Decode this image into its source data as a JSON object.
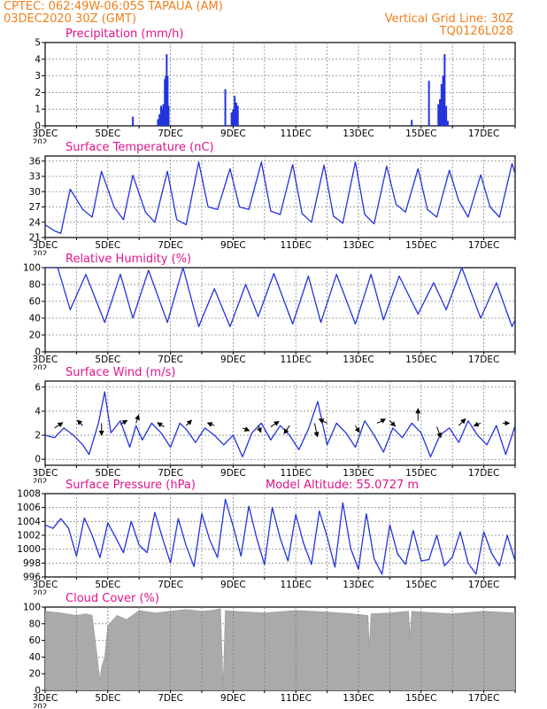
{
  "header": {
    "left_line1": "CPTEC:   062:49W-06:05S   TAPAUA (AM)",
    "left_line2": "03DEC2020 30Z (GMT)",
    "right_line1": "Vertical Grid Line: 30Z",
    "right_line2": "TQ0126L028"
  },
  "x_axis": {
    "day_start": 3,
    "day_end": 18,
    "tick_days": [
      3,
      5,
      7,
      9,
      11,
      13,
      15,
      17
    ],
    "tick_labels": [
      "3DEC",
      "5DEC",
      "7DEC",
      "9DEC",
      "11DEC",
      "13DEC",
      "15DEC",
      "17DEC"
    ],
    "year_fragment": "202"
  },
  "colors": {
    "title": "#e0148c",
    "header": "#f07f1a",
    "series": "#2233dd",
    "cloud": "#aaaaaa"
  },
  "chart_data": [
    {
      "type": "bar",
      "title": "Precipitation (mm/h)",
      "ylim": [
        0,
        5
      ],
      "yticks": [
        0,
        1,
        2,
        3,
        4,
        5
      ],
      "x_units": "day of December 2020",
      "bars": [
        [
          5.8,
          0.55
        ],
        [
          6.6,
          0.4
        ],
        [
          6.65,
          0.7
        ],
        [
          6.7,
          1.2
        ],
        [
          6.73,
          1.0
        ],
        [
          6.77,
          1.3
        ],
        [
          6.82,
          2.8
        ],
        [
          6.85,
          3.0
        ],
        [
          6.88,
          4.3
        ],
        [
          6.91,
          3.0
        ],
        [
          6.94,
          1.2
        ],
        [
          8.75,
          2.2
        ],
        [
          8.95,
          0.8
        ],
        [
          9.0,
          1.0
        ],
        [
          9.05,
          1.8
        ],
        [
          9.1,
          1.4
        ],
        [
          9.15,
          1.2
        ],
        [
          14.7,
          0.35
        ],
        [
          15.25,
          2.7
        ],
        [
          15.55,
          1.3
        ],
        [
          15.6,
          1.6
        ],
        [
          15.65,
          2.5
        ],
        [
          15.7,
          3.0
        ],
        [
          15.75,
          4.3
        ],
        [
          15.8,
          1.2
        ],
        [
          15.85,
          0.3
        ]
      ]
    },
    {
      "type": "line",
      "title": "Surface Temperature (nC)",
      "ylim": [
        21,
        37
      ],
      "yticks": [
        21,
        24,
        27,
        30,
        33,
        36
      ],
      "series": [
        {
          "x": [
            3.0,
            3.3,
            3.5,
            3.8,
            4.2,
            4.5,
            4.8,
            5.2,
            5.5,
            5.8,
            6.2,
            6.5,
            6.9,
            7.2,
            7.5,
            7.9,
            8.2,
            8.5,
            8.9,
            9.2,
            9.5,
            9.9,
            10.2,
            10.5,
            10.9,
            11.2,
            11.5,
            11.9,
            12.2,
            12.5,
            12.9,
            13.2,
            13.5,
            13.9,
            14.2,
            14.5,
            14.9,
            15.2,
            15.5,
            15.9,
            16.2,
            16.5,
            16.9,
            17.2,
            17.5,
            17.9,
            18.0
          ],
          "y": [
            23.5,
            22.3,
            21.8,
            30.5,
            26.5,
            25.0,
            34.0,
            27.0,
            24.5,
            33.2,
            26.0,
            24.0,
            34.0,
            24.5,
            23.5,
            35.8,
            27.0,
            26.5,
            34.5,
            27.0,
            26.5,
            35.8,
            26.2,
            25.5,
            35.3,
            25.7,
            24.0,
            35.2,
            25.2,
            23.8,
            35.8,
            25.5,
            23.7,
            35.0,
            27.5,
            26.0,
            34.5,
            26.5,
            25.0,
            34.2,
            28.2,
            25.0,
            33.3,
            27.0,
            25.0,
            35.5,
            33.5
          ]
        }
      ]
    },
    {
      "type": "line",
      "title": "Relative Humidity (%)",
      "ylim": [
        0,
        100
      ],
      "yticks": [
        0,
        20,
        40,
        60,
        80,
        100
      ],
      "series": [
        {
          "x": [
            3.0,
            3.4,
            3.8,
            4.3,
            4.9,
            5.4,
            5.8,
            6.3,
            6.9,
            7.4,
            7.9,
            8.4,
            8.9,
            9.4,
            9.8,
            10.3,
            10.9,
            11.4,
            11.8,
            12.3,
            12.9,
            13.4,
            13.8,
            14.3,
            14.9,
            15.4,
            15.8,
            16.3,
            16.9,
            17.4,
            17.9,
            18.0
          ],
          "y": [
            100,
            100,
            50,
            92,
            35,
            92,
            40,
            97,
            35,
            100,
            30,
            75,
            30,
            80,
            42,
            93,
            33,
            90,
            35,
            92,
            33,
            92,
            38,
            90,
            45,
            82,
            50,
            100,
            40,
            82,
            30,
            38
          ]
        }
      ]
    },
    {
      "type": "line",
      "title": "Surface Wind (m/s)",
      "ylim": [
        -0.5,
        6.5
      ],
      "yticks": [
        0,
        2,
        4,
        6
      ],
      "series": [
        {
          "x": [
            3.0,
            3.3,
            3.6,
            3.9,
            4.2,
            4.4,
            4.7,
            4.9,
            5.1,
            5.4,
            5.7,
            5.9,
            6.1,
            6.4,
            6.7,
            7.0,
            7.3,
            7.5,
            7.8,
            8.1,
            8.4,
            8.7,
            9.0,
            9.3,
            9.6,
            9.9,
            10.2,
            10.5,
            10.8,
            11.1,
            11.4,
            11.7,
            12.0,
            12.3,
            12.6,
            12.9,
            13.2,
            13.5,
            13.8,
            14.1,
            14.4,
            14.7,
            15.0,
            15.3,
            15.6,
            15.9,
            16.2,
            16.5,
            16.8,
            17.1,
            17.4,
            17.7,
            18.0
          ],
          "y": [
            2.0,
            1.8,
            2.6,
            2.0,
            1.2,
            0.4,
            3.0,
            5.6,
            2.2,
            3.2,
            1.0,
            2.8,
            1.6,
            3.0,
            2.2,
            1.0,
            3.0,
            2.5,
            1.4,
            2.6,
            2.0,
            1.2,
            2.0,
            0.2,
            2.2,
            3.0,
            1.6,
            2.8,
            2.0,
            0.8,
            2.5,
            4.8,
            1.2,
            3.0,
            2.2,
            1.0,
            3.2,
            2.0,
            0.6,
            2.6,
            1.8,
            3.0,
            2.2,
            0.2,
            2.0,
            2.6,
            1.4,
            3.2,
            2.0,
            1.2,
            2.8,
            0.4,
            2.8
          ]
        }
      ],
      "vectors": [
        [
          3.3,
          2.6,
          0.6,
          0.4
        ],
        [
          4.2,
          2.8,
          -0.4,
          0.4
        ],
        [
          4.8,
          3.0,
          0.0,
          -0.9
        ],
        [
          5.4,
          2.9,
          0.5,
          0.3
        ],
        [
          5.9,
          3.0,
          0.2,
          0.6
        ],
        [
          6.8,
          2.7,
          -0.5,
          0.3
        ],
        [
          7.5,
          2.8,
          0.4,
          0.4
        ],
        [
          8.4,
          2.8,
          -0.5,
          0.2
        ],
        [
          9.3,
          2.6,
          0.5,
          -0.2
        ],
        [
          9.8,
          2.8,
          0.2,
          -0.5
        ],
        [
          10.2,
          2.7,
          0.6,
          0.4
        ],
        [
          10.8,
          2.8,
          -0.4,
          -0.6
        ],
        [
          11.6,
          3.0,
          0.2,
          -1.0
        ],
        [
          12.0,
          3.0,
          -0.6,
          0.3
        ],
        [
          12.9,
          2.8,
          0.3,
          -0.5
        ],
        [
          13.6,
          3.0,
          0.6,
          0.3
        ],
        [
          14.0,
          3.2,
          0.4,
          -0.4
        ],
        [
          14.9,
          3.2,
          0.0,
          0.9
        ],
        [
          15.5,
          2.7,
          0.3,
          -0.8
        ],
        [
          16.2,
          2.8,
          0.5,
          0.5
        ],
        [
          16.9,
          3.0,
          -0.5,
          -0.2
        ],
        [
          17.6,
          3.0,
          0.5,
          0.0
        ]
      ]
    },
    {
      "type": "line",
      "title": "Surface Pressure (hPa)",
      "subtitle": "Model Altitude: 55.0727 m",
      "ylim": [
        996,
        1008
      ],
      "yticks": [
        996,
        998,
        1000,
        1002,
        1004,
        1006,
        1008
      ],
      "series": [
        {
          "x": [
            3.0,
            3.25,
            3.5,
            3.75,
            4.0,
            4.25,
            4.5,
            4.75,
            5.0,
            5.25,
            5.5,
            5.75,
            6.0,
            6.25,
            6.5,
            6.75,
            7.0,
            7.25,
            7.5,
            7.75,
            8.0,
            8.25,
            8.5,
            8.75,
            9.0,
            9.25,
            9.5,
            9.75,
            10.0,
            10.25,
            10.5,
            10.75,
            11.0,
            11.25,
            11.5,
            11.75,
            12.0,
            12.25,
            12.5,
            12.75,
            13.0,
            13.25,
            13.5,
            13.75,
            14.0,
            14.25,
            14.5,
            14.75,
            15.0,
            15.25,
            15.5,
            15.75,
            16.0,
            16.25,
            16.5,
            16.75,
            17.0,
            17.25,
            17.5,
            17.75,
            18.0
          ],
          "y": [
            1003.5,
            1003.0,
            1004.4,
            1003.0,
            999.0,
            1004.5,
            1002.0,
            998.8,
            1003.8,
            1001.7,
            999.5,
            1004.0,
            1000.6,
            999.5,
            1005.3,
            1001.5,
            998.0,
            1004.4,
            1000.5,
            997.5,
            1005.1,
            1001.4,
            998.8,
            1007.2,
            1003.3,
            999.0,
            1006.2,
            1001.6,
            997.8,
            1006.0,
            1001.6,
            998.3,
            1005.0,
            1000.8,
            997.8,
            1005.5,
            1001.8,
            997.4,
            1006.7,
            1000.1,
            997.1,
            1005.1,
            998.6,
            996.4,
            1003.5,
            999.3,
            997.8,
            1002.7,
            998.3,
            998.5,
            1002.0,
            997.6,
            998.9,
            1002.5,
            998.0,
            996.4,
            1002.5,
            999.4,
            997.6,
            1002.0,
            998.3
          ]
        }
      ]
    },
    {
      "type": "area",
      "title": "Cloud Cover (%)",
      "ylim": [
        0,
        100
      ],
      "yticks": [
        0,
        20,
        40,
        60,
        80,
        100
      ],
      "series": [
        {
          "x": [
            3.0,
            3.5,
            4.0,
            4.3,
            4.5,
            4.6,
            4.75,
            4.8,
            4.9,
            5.0,
            5.3,
            5.6,
            6.0,
            6.5,
            7.0,
            7.5,
            8.0,
            8.3,
            8.6,
            8.68,
            8.75,
            9.0,
            10.0,
            11.0,
            12.0,
            12.8,
            13.3,
            13.35,
            13.4,
            14.0,
            14.6,
            14.65,
            14.7,
            15.0,
            16.0,
            17.0,
            18.0
          ],
          "y": [
            95,
            93,
            90,
            92,
            90,
            60,
            12,
            28,
            40,
            78,
            90,
            85,
            96,
            93,
            95,
            97,
            95,
            96,
            98,
            4,
            96,
            95,
            93,
            96,
            94,
            92,
            90,
            52,
            92,
            93,
            95,
            65,
            95,
            94,
            92,
            95,
            93
          ]
        }
      ]
    }
  ]
}
